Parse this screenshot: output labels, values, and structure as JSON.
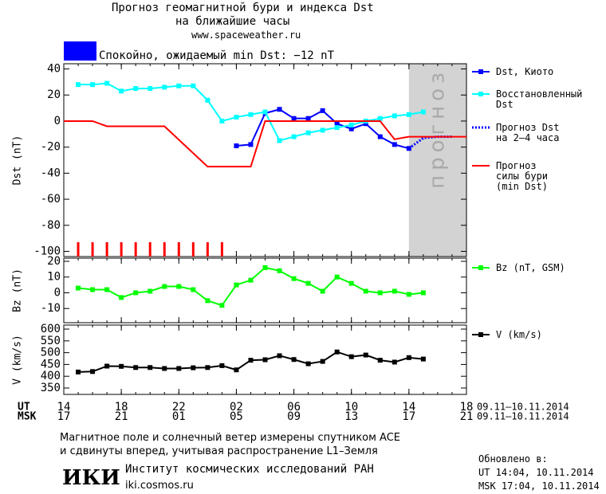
{
  "header": {
    "title": "Прогноз геомагнитной бури и индекса Dst",
    "subtitle": "на ближайшие часы",
    "url": "www.spaceweather.ru"
  },
  "status": {
    "color": "#0000ff",
    "text": "Спокойно, ожидаемый min Dst: −12 nT"
  },
  "chart_data": [
    {
      "type": "line",
      "ylabel": "Dst (nT)",
      "xlim": [
        14,
        42
      ],
      "ylim": [
        -104,
        44
      ],
      "yticks": [
        -100,
        -80,
        -60,
        -40,
        -20,
        0,
        20,
        40
      ],
      "forecast_region": {
        "xlim": [
          38,
          42
        ],
        "label": "прогноз",
        "color": "#d3d3d3"
      },
      "markers": {
        "color": "#ff0000",
        "x": [
          15,
          16,
          17,
          18,
          19,
          20,
          21,
          22,
          23,
          24,
          25
        ]
      },
      "series": [
        {
          "name": "Dst, Киото",
          "color": "#0000ff",
          "marker": true,
          "x": [
            26,
            27,
            28,
            29,
            30,
            31,
            32,
            33,
            34,
            35,
            36,
            37,
            38
          ],
          "values": [
            -19,
            -18,
            6,
            9,
            2,
            2,
            8,
            -2,
            -6,
            -2,
            -12,
            -18,
            -21
          ]
        },
        {
          "name": "Восстановленный\nDst",
          "color": "#00ffff",
          "marker": true,
          "x": [
            15,
            16,
            17,
            18,
            19,
            20,
            21,
            22,
            23,
            24,
            25,
            26,
            27,
            28,
            29,
            30,
            31,
            32,
            33,
            34,
            35,
            36,
            37,
            38,
            39
          ],
          "values": [
            28,
            28,
            29,
            23,
            25,
            25,
            26,
            27,
            27,
            16,
            0,
            3,
            5,
            7,
            -15,
            -12,
            -9,
            -7,
            -5,
            -3,
            0,
            2,
            4,
            5,
            7
          ]
        },
        {
          "name": "Прогноз Dst\nна 2–4 часа",
          "color": "#0000ff",
          "dashed": true,
          "x": [
            38,
            39,
            40,
            41
          ],
          "values": [
            -21,
            -13,
            -12,
            -12
          ]
        },
        {
          "name": "Прогноз\nсилы бури\n(min Dst)",
          "color": "#ff0000",
          "x": [
            14,
            16,
            17,
            21,
            24,
            27,
            28,
            36,
            37,
            38,
            42
          ],
          "values": [
            0,
            0,
            -4,
            -4,
            -35,
            -35,
            0,
            0,
            -14,
            -12,
            -12
          ]
        }
      ]
    },
    {
      "type": "line",
      "ylabel": "Bz (nT)",
      "xlim": [
        14,
        42
      ],
      "ylim": [
        -19,
        22
      ],
      "yticks": [
        -10,
        0,
        10,
        20
      ],
      "series": [
        {
          "name": "Bz (nT, GSM)",
          "color": "#00ff00",
          "marker": true,
          "x": [
            15,
            16,
            17,
            18,
            19,
            20,
            21,
            22,
            23,
            24,
            25,
            26,
            27,
            28,
            29,
            30,
            31,
            32,
            33,
            34,
            35,
            36,
            37,
            38,
            39
          ],
          "values": [
            3,
            2,
            2,
            -3,
            0,
            1,
            4,
            4,
            2,
            -5,
            -8,
            5,
            8,
            16,
            14,
            9,
            6,
            1,
            10,
            6,
            1,
            0,
            1,
            -1,
            0
          ]
        }
      ]
    },
    {
      "type": "line",
      "ylabel": "V (km/s)",
      "xlim": [
        14,
        42
      ],
      "ylim": [
        323,
        617
      ],
      "yticks": [
        350,
        400,
        450,
        500,
        550,
        600
      ],
      "xticks": [
        14,
        18,
        22,
        {
          "value": 26,
          "label": "02"
        },
        {
          "value": 30,
          "label": "06"
        },
        {
          "value": 34,
          "label": "10"
        },
        {
          "value": 38,
          "label": "14"
        },
        {
          "value": 42,
          "label": "18"
        }
      ],
      "x2ticks": [
        {
          "value": 14,
          "label": "17"
        },
        {
          "value": 18,
          "label": "21"
        },
        {
          "value": 22,
          "label": "01"
        },
        {
          "value": 26,
          "label": "05"
        },
        {
          "value": 30,
          "label": "09"
        },
        {
          "value": 34,
          "label": "13"
        },
        {
          "value": 38,
          "label": "17"
        },
        {
          "value": 42,
          "label": "21"
        }
      ],
      "x_row_labels": [
        "UT",
        "MSK"
      ],
      "x_date_labels": [
        "09.11–10.11.2014",
        "09.11–10.11.2014"
      ],
      "series": [
        {
          "name": "V (km/s)",
          "color": "#000000",
          "marker": true,
          "x": [
            15,
            16,
            17,
            18,
            19,
            20,
            21,
            22,
            23,
            24,
            25,
            26,
            27,
            28,
            29,
            30,
            31,
            32,
            33,
            34,
            35,
            36,
            37,
            38,
            39
          ],
          "values": [
            418,
            420,
            443,
            442,
            437,
            437,
            433,
            433,
            436,
            437,
            445,
            427,
            468,
            470,
            487,
            471,
            453,
            463,
            503,
            483,
            490,
            468,
            460,
            479,
            473
          ]
        }
      ]
    }
  ],
  "footer": {
    "note": [
      "Магнитное поле и солнечный ветер измерены спутником ACE",
      "и сдвинуты вперед, учитывая распространение L1–Земля"
    ],
    "logo": "ИКИ",
    "institute": "Институт космических исследований РАН",
    "site": "iki.cosmos.ru",
    "updated": "Обновлено в:",
    "updated_ut": "UT  14:04, 10.11.2014",
    "updated_msk": "MSK 17:04, 10.11.2014"
  }
}
